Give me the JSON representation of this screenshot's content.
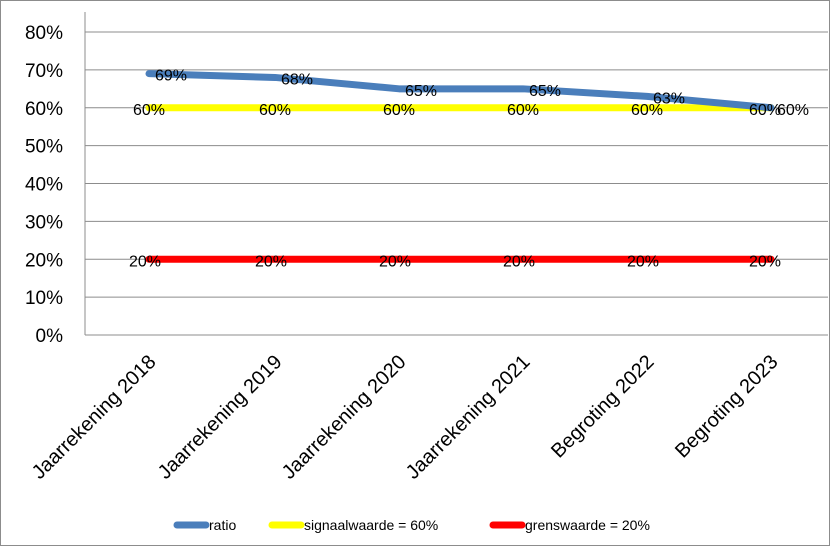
{
  "chart_data": {
    "type": "line",
    "title": "",
    "xlabel": "",
    "ylabel": "",
    "categories": [
      "Jaarrekening 2018",
      "Jaarrekening 2019",
      "Jaarrekening 2020",
      "Jaarrekening 2021",
      "Begroting 2022",
      "Begroting 2023"
    ],
    "y_ticks": [
      "0%",
      "10%",
      "20%",
      "30%",
      "40%",
      "50%",
      "60%",
      "70%",
      "80%"
    ],
    "ylim": [
      0,
      80
    ],
    "grid": true,
    "legend_position": "bottom",
    "series": [
      {
        "name": "ratio",
        "color": "#4a7ebb",
        "values": [
          69,
          68,
          65,
          65,
          63,
          60
        ],
        "labels": [
          "69%",
          "68%",
          "65%",
          "65%",
          "63%",
          "60%"
        ]
      },
      {
        "name": "signaalwaarde = 60%",
        "color": "#ffff00",
        "values": [
          60,
          60,
          60,
          60,
          60,
          60
        ],
        "labels": [
          "60%",
          "60%",
          "60%",
          "60%",
          "60%",
          "60%"
        ]
      },
      {
        "name": "grenswaarde = 20%",
        "color": "#ff0000",
        "values": [
          20,
          20,
          20,
          20,
          20,
          20
        ],
        "labels": [
          "20%",
          "20%",
          "20%",
          "20%",
          "20%",
          "20%"
        ]
      }
    ]
  }
}
